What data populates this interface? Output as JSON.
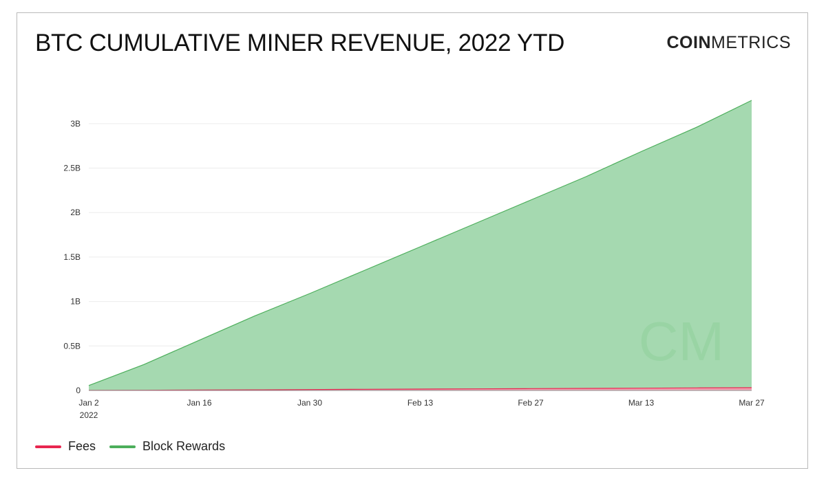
{
  "header": {
    "title": "BTC CUMULATIVE MINER REVENUE, 2022 YTD",
    "brand_bold": "COIN",
    "brand_light": "METRICS"
  },
  "watermark": "CM",
  "colors": {
    "fees": "#e8264f",
    "fees_fill": "#f3a3b3",
    "block_rewards": "#4cae5b",
    "block_rewards_fill": "#a5d9b0",
    "grid": "#ececec"
  },
  "chart_data": {
    "type": "area",
    "stacked": true,
    "x_type": "date",
    "x": [
      "2022-01-02",
      "2022-01-09",
      "2022-01-16",
      "2022-01-23",
      "2022-01-30",
      "2022-02-06",
      "2022-02-13",
      "2022-02-20",
      "2022-02-27",
      "2022-03-06",
      "2022-03-13",
      "2022-03-20",
      "2022-03-27"
    ],
    "series": [
      {
        "name": "Fees",
        "values": [
          0.0004,
          0.0025,
          0.0047,
          0.0072,
          0.0098,
          0.0128,
          0.0155,
          0.018,
          0.0205,
          0.0232,
          0.0258,
          0.0285,
          0.031
        ]
      },
      {
        "name": "Block Rewards",
        "values": [
          0.055,
          0.29,
          0.56,
          0.83,
          1.08,
          1.34,
          1.6,
          1.86,
          2.12,
          2.38,
          2.66,
          2.93,
          3.23
        ]
      }
    ],
    "y_unit_label": "B",
    "ylim": [
      0,
      3.3
    ],
    "y_ticks": [
      0,
      0.5,
      1,
      1.5,
      2,
      2.5,
      3
    ],
    "y_tick_labels": [
      "0",
      "0.5B",
      "1B",
      "1.5B",
      "2B",
      "2.5B",
      "3B"
    ],
    "x_ticks": [
      "2022-01-02",
      "2022-01-16",
      "2022-01-30",
      "2022-02-13",
      "2022-02-27",
      "2022-03-13",
      "2022-03-27"
    ],
    "x_tick_labels": [
      "Jan 2",
      "Jan 16",
      "Jan 30",
      "Feb 13",
      "Feb 27",
      "Mar 13",
      "Mar 27"
    ],
    "x_tick_sublabels": [
      "2022",
      "",
      "",
      "",
      "",
      "",
      ""
    ],
    "grid": true,
    "legend_position": "bottom-left"
  },
  "legend": [
    {
      "label": "Fees",
      "color": "#e8264f"
    },
    {
      "label": "Block Rewards",
      "color": "#4cae5b"
    }
  ]
}
